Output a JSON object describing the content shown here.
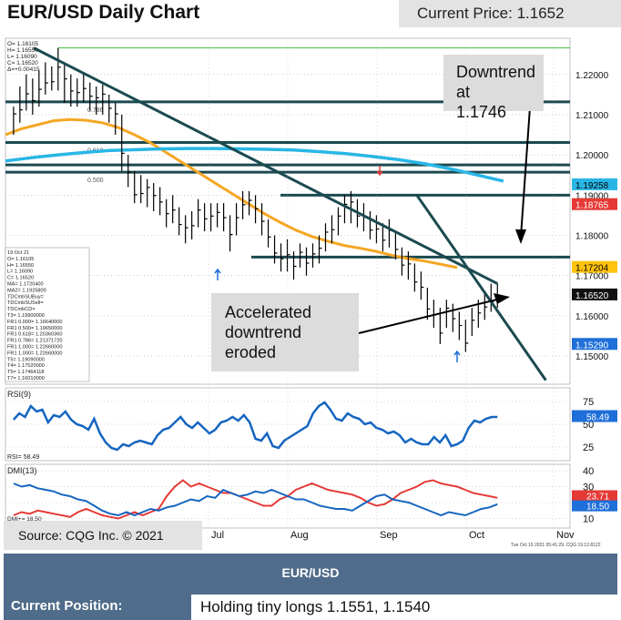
{
  "header": {
    "title": "EUR/USD Daily Chart",
    "current_price": "Current Price: 1.1652"
  },
  "annotations": {
    "downtrend": [
      "Downtrend at",
      "1.1746"
    ],
    "accelerated": [
      "Accelerated",
      "downtrend",
      "eroded"
    ]
  },
  "source": "Source: CQG Inc. © 2021",
  "panel": {
    "pair": "EUR/USD",
    "position_label": "Current Position:",
    "position_value": "Holding tiny longs 1.1551, 1.1540"
  },
  "colors": {
    "price_bars": "#000000",
    "ma_short": "#f5a623",
    "ma_long": "#29b6e6",
    "trendline": "#1b4a50",
    "rsi": "#1565c0",
    "dmi_plus": "#1565c0",
    "dmi_minus": "#e53935",
    "panel_bg": "#4f6c8a",
    "tag_blue": "#1e6fd9",
    "tag_red": "#e53935",
    "tag_orange": "#ffc20e"
  },
  "chart_data": {
    "type": "line",
    "x_ticks": [
      "Jul",
      "Aug",
      "Sep",
      "Oct",
      "Nov"
    ],
    "price": {
      "y_ticks": [
        1.15,
        1.16,
        1.17,
        1.18,
        1.19,
        1.2,
        1.21,
        1.22
      ],
      "y_tick_labels": [
        "1.15000",
        "1.16000",
        "1.17000",
        "1.18000",
        "1.19000",
        "1.20000",
        "1.21000",
        "1.22000"
      ],
      "ylim": [
        1.143,
        1.229
      ],
      "series_close": [
        1.2102,
        1.2112,
        1.2152,
        1.2135,
        1.2163,
        1.2179,
        1.2182,
        1.2218,
        1.2189,
        1.2159,
        1.2155,
        1.2165,
        1.2146,
        1.2142,
        1.2151,
        1.2116,
        1.2102,
        1.2004,
        1.1957,
        1.1901,
        1.1904,
        1.1919,
        1.1899,
        1.1883,
        1.1854,
        1.1863,
        1.1827,
        1.1819,
        1.1824,
        1.1863,
        1.1841,
        1.1848,
        1.1857,
        1.1844,
        1.1802,
        1.1844,
        1.1876,
        1.1887,
        1.1866,
        1.1835,
        1.1796,
        1.1756,
        1.1742,
        1.1752,
        1.1723,
        1.1758,
        1.1731,
        1.1754,
        1.1768,
        1.1808,
        1.1814,
        1.1848,
        1.1877,
        1.1883,
        1.1848,
        1.1845,
        1.1813,
        1.1816,
        1.1788,
        1.1812,
        1.1765,
        1.1726,
        1.1729,
        1.1684,
        1.1671,
        1.1617,
        1.1603,
        1.1557,
        1.1619,
        1.1593,
        1.1576,
        1.1532,
        1.1589,
        1.1607,
        1.1622,
        1.1635,
        1.1652
      ],
      "bar_high_low": [
        [
          1.212,
          1.205
        ],
        [
          1.217,
          1.208
        ],
        [
          1.22,
          1.211
        ],
        [
          1.219,
          1.21
        ],
        [
          1.221,
          1.212
        ],
        [
          1.223,
          1.215
        ],
        [
          1.222,
          1.216
        ],
        [
          1.2266,
          1.216
        ],
        [
          1.223,
          1.213
        ],
        [
          1.22,
          1.212
        ],
        [
          1.219,
          1.212
        ],
        [
          1.22,
          1.213
        ],
        [
          1.218,
          1.211
        ],
        [
          1.217,
          1.21
        ],
        [
          1.2175,
          1.21
        ],
        [
          1.215,
          1.208
        ],
        [
          1.213,
          1.205
        ],
        [
          1.21,
          1.196
        ],
        [
          1.2,
          1.192
        ],
        [
          1.196,
          1.188
        ],
        [
          1.195,
          1.188
        ],
        [
          1.194,
          1.187
        ],
        [
          1.193,
          1.186
        ],
        [
          1.192,
          1.185
        ],
        [
          1.189,
          1.182
        ],
        [
          1.19,
          1.183
        ],
        [
          1.187,
          1.18
        ],
        [
          1.185,
          1.178
        ],
        [
          1.186,
          1.179
        ],
        [
          1.189,
          1.182
        ],
        [
          1.188,
          1.181
        ],
        [
          1.188,
          1.181
        ],
        [
          1.188,
          1.182
        ],
        [
          1.188,
          1.181
        ],
        [
          1.185,
          1.176
        ],
        [
          1.188,
          1.18
        ],
        [
          1.191,
          1.184
        ],
        [
          1.191,
          1.185
        ],
        [
          1.19,
          1.183
        ],
        [
          1.188,
          1.18
        ],
        [
          1.184,
          1.177
        ],
        [
          1.18,
          1.173
        ],
        [
          1.178,
          1.171
        ],
        [
          1.179,
          1.171
        ],
        [
          1.176,
          1.169
        ],
        [
          1.178,
          1.172
        ],
        [
          1.177,
          1.17
        ],
        [
          1.178,
          1.172
        ],
        [
          1.18,
          1.173
        ],
        [
          1.183,
          1.176
        ],
        [
          1.185,
          1.178
        ],
        [
          1.187,
          1.18
        ],
        [
          1.19,
          1.183
        ],
        [
          1.191,
          1.183
        ],
        [
          1.189,
          1.182
        ],
        [
          1.188,
          1.181
        ],
        [
          1.186,
          1.179
        ],
        [
          1.185,
          1.178
        ],
        [
          1.183,
          1.176
        ],
        [
          1.184,
          1.177
        ],
        [
          1.181,
          1.174
        ],
        [
          1.177,
          1.17
        ],
        [
          1.176,
          1.169
        ],
        [
          1.173,
          1.166
        ],
        [
          1.171,
          1.164
        ],
        [
          1.167,
          1.159
        ],
        [
          1.164,
          1.157
        ],
        [
          1.162,
          1.153
        ],
        [
          1.164,
          1.157
        ],
        [
          1.163,
          1.156
        ],
        [
          1.161,
          1.154
        ],
        [
          1.159,
          1.151
        ],
        [
          1.162,
          1.155
        ],
        [
          1.164,
          1.157
        ],
        [
          1.166,
          1.159
        ],
        [
          1.168,
          1.161
        ],
        [
          1.168,
          1.162
        ]
      ],
      "ma_short": [
        1.205,
        1.2065,
        1.2075,
        1.2085,
        1.2088,
        1.2086,
        1.208,
        1.2068,
        1.205,
        1.203,
        1.2005,
        1.198,
        1.1955,
        1.193,
        1.1905,
        1.188,
        1.1855,
        1.1833,
        1.1813,
        1.1797,
        1.1785,
        1.1775,
        1.1768,
        1.176,
        1.175,
        1.1742,
        1.1736,
        1.1728,
        1.172
      ],
      "ma_long": [
        1.1985,
        1.1993,
        1.2,
        1.2006,
        1.2011,
        1.2013,
        1.2015,
        1.2016,
        1.2016,
        1.2015,
        1.2014,
        1.2012,
        1.2008,
        1.2003,
        1.1996,
        1.1988,
        1.1978,
        1.1965,
        1.195,
        1.1935
      ],
      "horizontal_levels": [
        1.1746,
        1.19,
        1.1957,
        1.1975,
        1.2031,
        1.2132
      ],
      "fib_labels": [
        "0.786",
        "0.618",
        "0.500"
      ],
      "trendlines": [
        {
          "name": "Downtrend",
          "from": [
            7,
            1.2266
          ],
          "to": [
            122,
            1.168
          ]
        },
        {
          "name": "Accelerated downtrend",
          "from": [
            102,
            1.19
          ],
          "to": [
            134,
            1.144
          ]
        }
      ],
      "axis_tags": [
        {
          "value": "1.19258",
          "kind": "ma_long"
        },
        {
          "value": "1.18765",
          "kind": "red"
        },
        {
          "value": "1.17204",
          "kind": "ma_short"
        },
        {
          "value": "1.16520",
          "kind": "price"
        },
        {
          "value": "1.15290",
          "kind": "blue"
        }
      ]
    },
    "ohlc_box": [
      "O=  1.16105",
      "H=  1.16550",
      "L=  1.16090",
      "C=  1.16520",
      "Δ=+0.00415"
    ],
    "info_box": [
      "19 Oct 21",
      "O=  1.16105",
      "H=  1.16550",
      "L=  1.16090",
      "C=  1.16520",
      "MA=  1.1720400",
      "MA2= 1.1925800",
      "TDCmbSUBuy=",
      "TDCmbSUSell=",
      "TDCmbCD=",
      "T3=  1.19900000",
      "FR1 0.000= 1.16640000",
      "FR1 0.500= 1.19650000",
      "FR1 0.618= 1.20360360",
      "FR1 0.786= 1.21371720",
      "FR1 1.000= 1.22660000",
      "FR1 1.000= 1.22660000",
      "T5=  1.19090000",
      "T4=  1.17520000",
      "T5=  1.17464118",
      "T7=  1.16010000"
    ],
    "rsi": {
      "label": "RSI(9)",
      "readout": "RSI=  58.49",
      "y_ticks": [
        25,
        50,
        75
      ],
      "ylim": [
        10,
        90
      ],
      "current": "58.49",
      "values": [
        55,
        62,
        58,
        70,
        64,
        66,
        52,
        60,
        58,
        64,
        55,
        50,
        48,
        44,
        56,
        40,
        30,
        24,
        22,
        28,
        26,
        30,
        32,
        30,
        28,
        38,
        44,
        46,
        52,
        58,
        50,
        46,
        52,
        46,
        40,
        44,
        52,
        54,
        58,
        54,
        60,
        52,
        34,
        32,
        40,
        26,
        24,
        32,
        36,
        40,
        44,
        48,
        62,
        70,
        74,
        66,
        56,
        54,
        62,
        58,
        56,
        50,
        52,
        46,
        44,
        40,
        42,
        38,
        30,
        34,
        30,
        28,
        28,
        36,
        30,
        38,
        26,
        28,
        32,
        46,
        54,
        52,
        56,
        58,
        58
      ]
    },
    "dmi": {
      "label": "DMI(13)",
      "readouts": [
        "DMI+=  18.50",
        "DMI-=  23.71"
      ],
      "y_ticks": [
        10,
        20,
        30,
        40
      ],
      "ylim": [
        4,
        44
      ],
      "plus_current": "18.50",
      "minus_current": "23.71",
      "plus": [
        32,
        30,
        31,
        29,
        28,
        27,
        25,
        24,
        22,
        21,
        18,
        15,
        13,
        12,
        14,
        12,
        14,
        16,
        15,
        17,
        18,
        20,
        22,
        21,
        24,
        23,
        28,
        26,
        24,
        25,
        27,
        26,
        28,
        26,
        24,
        22,
        22,
        20,
        18,
        17,
        16,
        16,
        15,
        18,
        21,
        24,
        25,
        22,
        21,
        20,
        18,
        16,
        14,
        12,
        14,
        13,
        12,
        14,
        16,
        17,
        19
      ],
      "minus": [
        12,
        14,
        13,
        15,
        14,
        13,
        12,
        11,
        14,
        16,
        14,
        12,
        11,
        10,
        12,
        14,
        12,
        14,
        16,
        24,
        30,
        34,
        30,
        32,
        30,
        28,
        26,
        26,
        24,
        22,
        20,
        18,
        18,
        22,
        24,
        28,
        30,
        32,
        30,
        28,
        27,
        26,
        25,
        23,
        20,
        18,
        19,
        22,
        26,
        28,
        30,
        33,
        34,
        32,
        31,
        30,
        28,
        26,
        25,
        24,
        23
      ]
    },
    "footer_stamp": "Tue Oct 19 2021 05:41:29, CQG 19.12.8122"
  }
}
